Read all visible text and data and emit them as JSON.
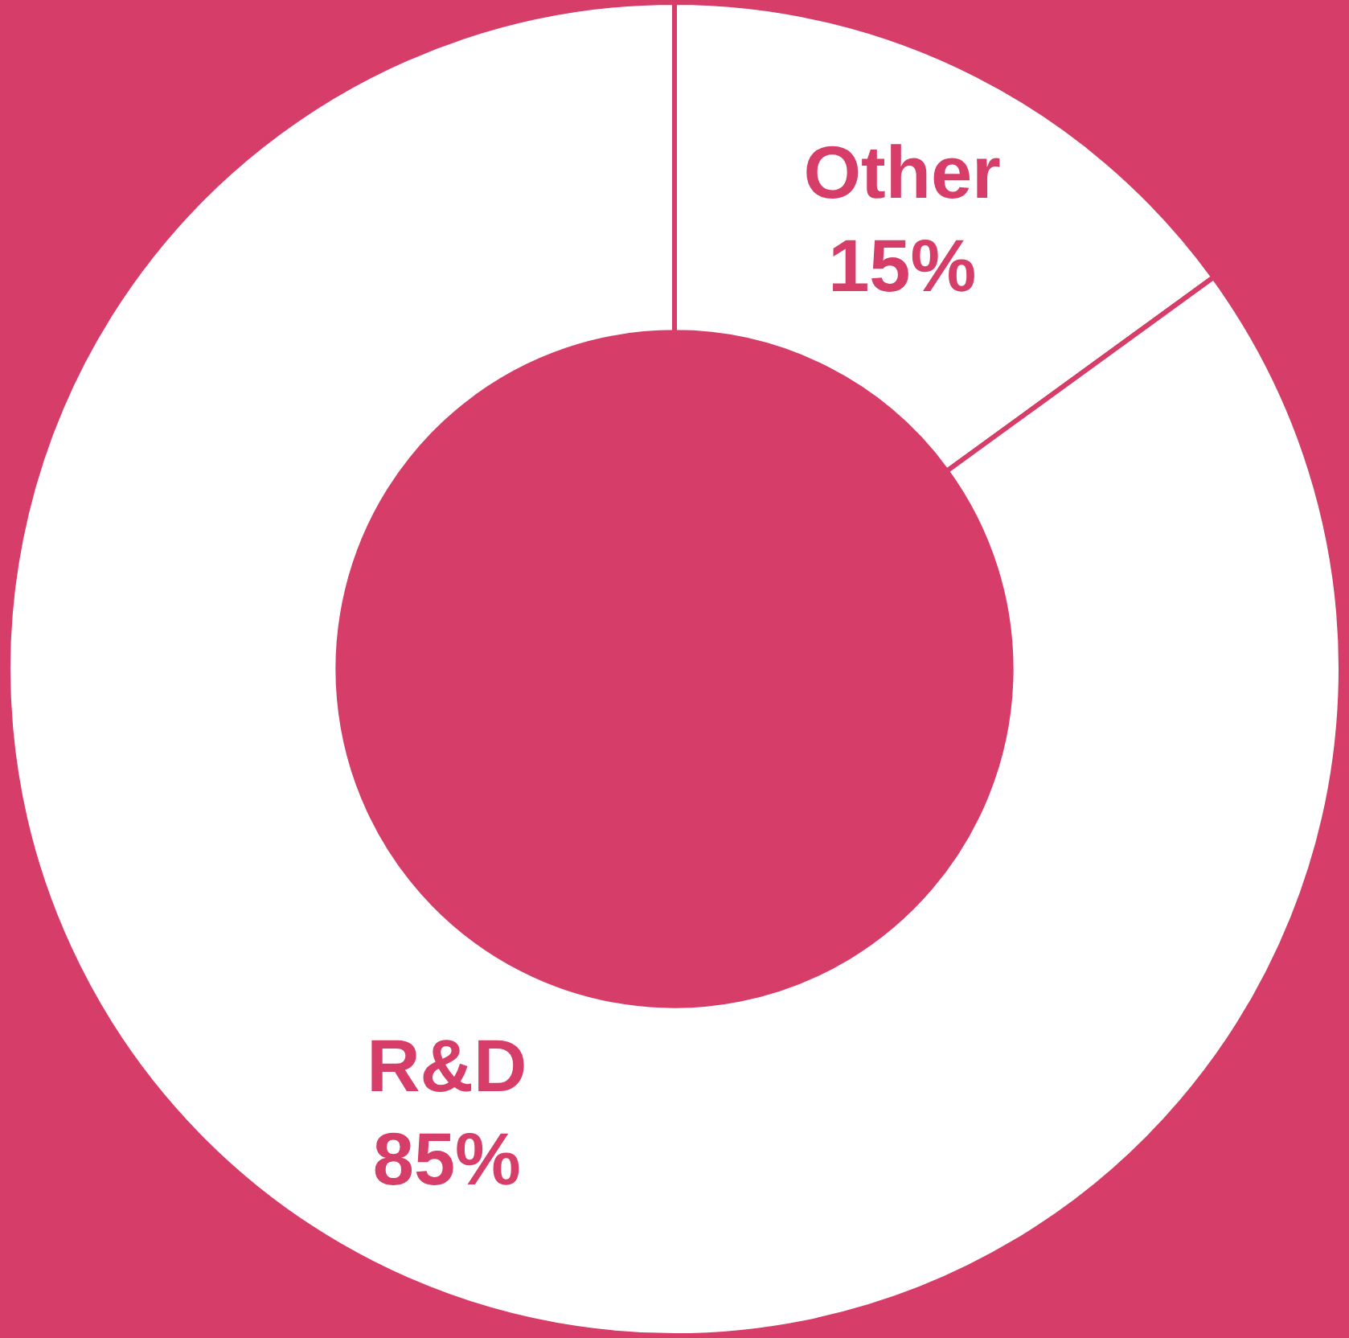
{
  "chart_data": {
    "type": "donut",
    "categories": [
      "Other",
      "R&D"
    ],
    "values": [
      15,
      85
    ],
    "colors": [
      "#ffffff",
      "#ffffff"
    ],
    "value_labels": [
      "15%",
      "85%"
    ],
    "legend": false
  }
}
